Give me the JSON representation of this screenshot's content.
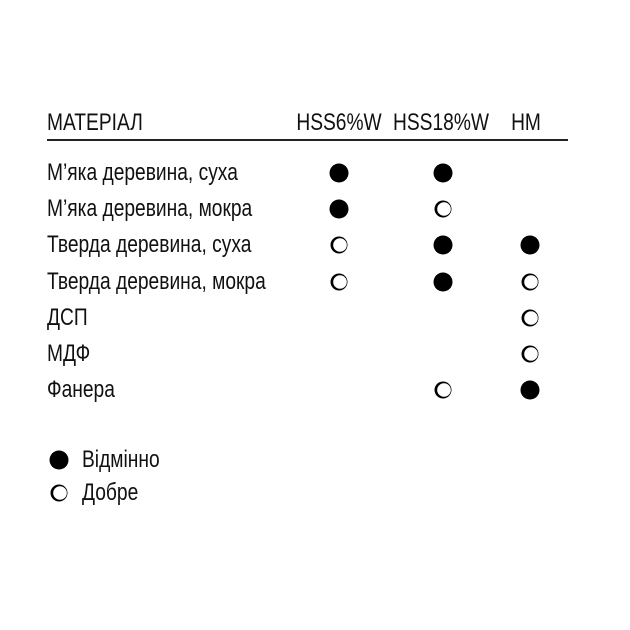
{
  "header": {
    "material": "МАТЕРІАЛ",
    "columns": [
      "HSS6%W",
      "HSS18%W",
      "HM"
    ]
  },
  "rows": [
    {
      "label": "М’яка деревина, суха",
      "ratings": [
        "excellent",
        "excellent",
        ""
      ]
    },
    {
      "label": "М’яка деревина, мокра",
      "ratings": [
        "excellent",
        "good",
        ""
      ]
    },
    {
      "label": "Тверда деревина, суха",
      "ratings": [
        "good",
        "excellent",
        "excellent"
      ]
    },
    {
      "label": "Тверда деревина, мокра",
      "ratings": [
        "good",
        "excellent",
        "good"
      ]
    },
    {
      "label": "ДСП",
      "ratings": [
        "",
        "",
        "good"
      ]
    },
    {
      "label": "МДФ",
      "ratings": [
        "",
        "",
        "good"
      ]
    },
    {
      "label": "Фанера",
      "ratings": [
        "",
        "good",
        "excellent"
      ]
    }
  ],
  "legend": {
    "excellent": "Відмінно",
    "good": "Добре"
  },
  "icons": {
    "excellent": "filled-circle-icon",
    "good": "open-circle-icon"
  }
}
